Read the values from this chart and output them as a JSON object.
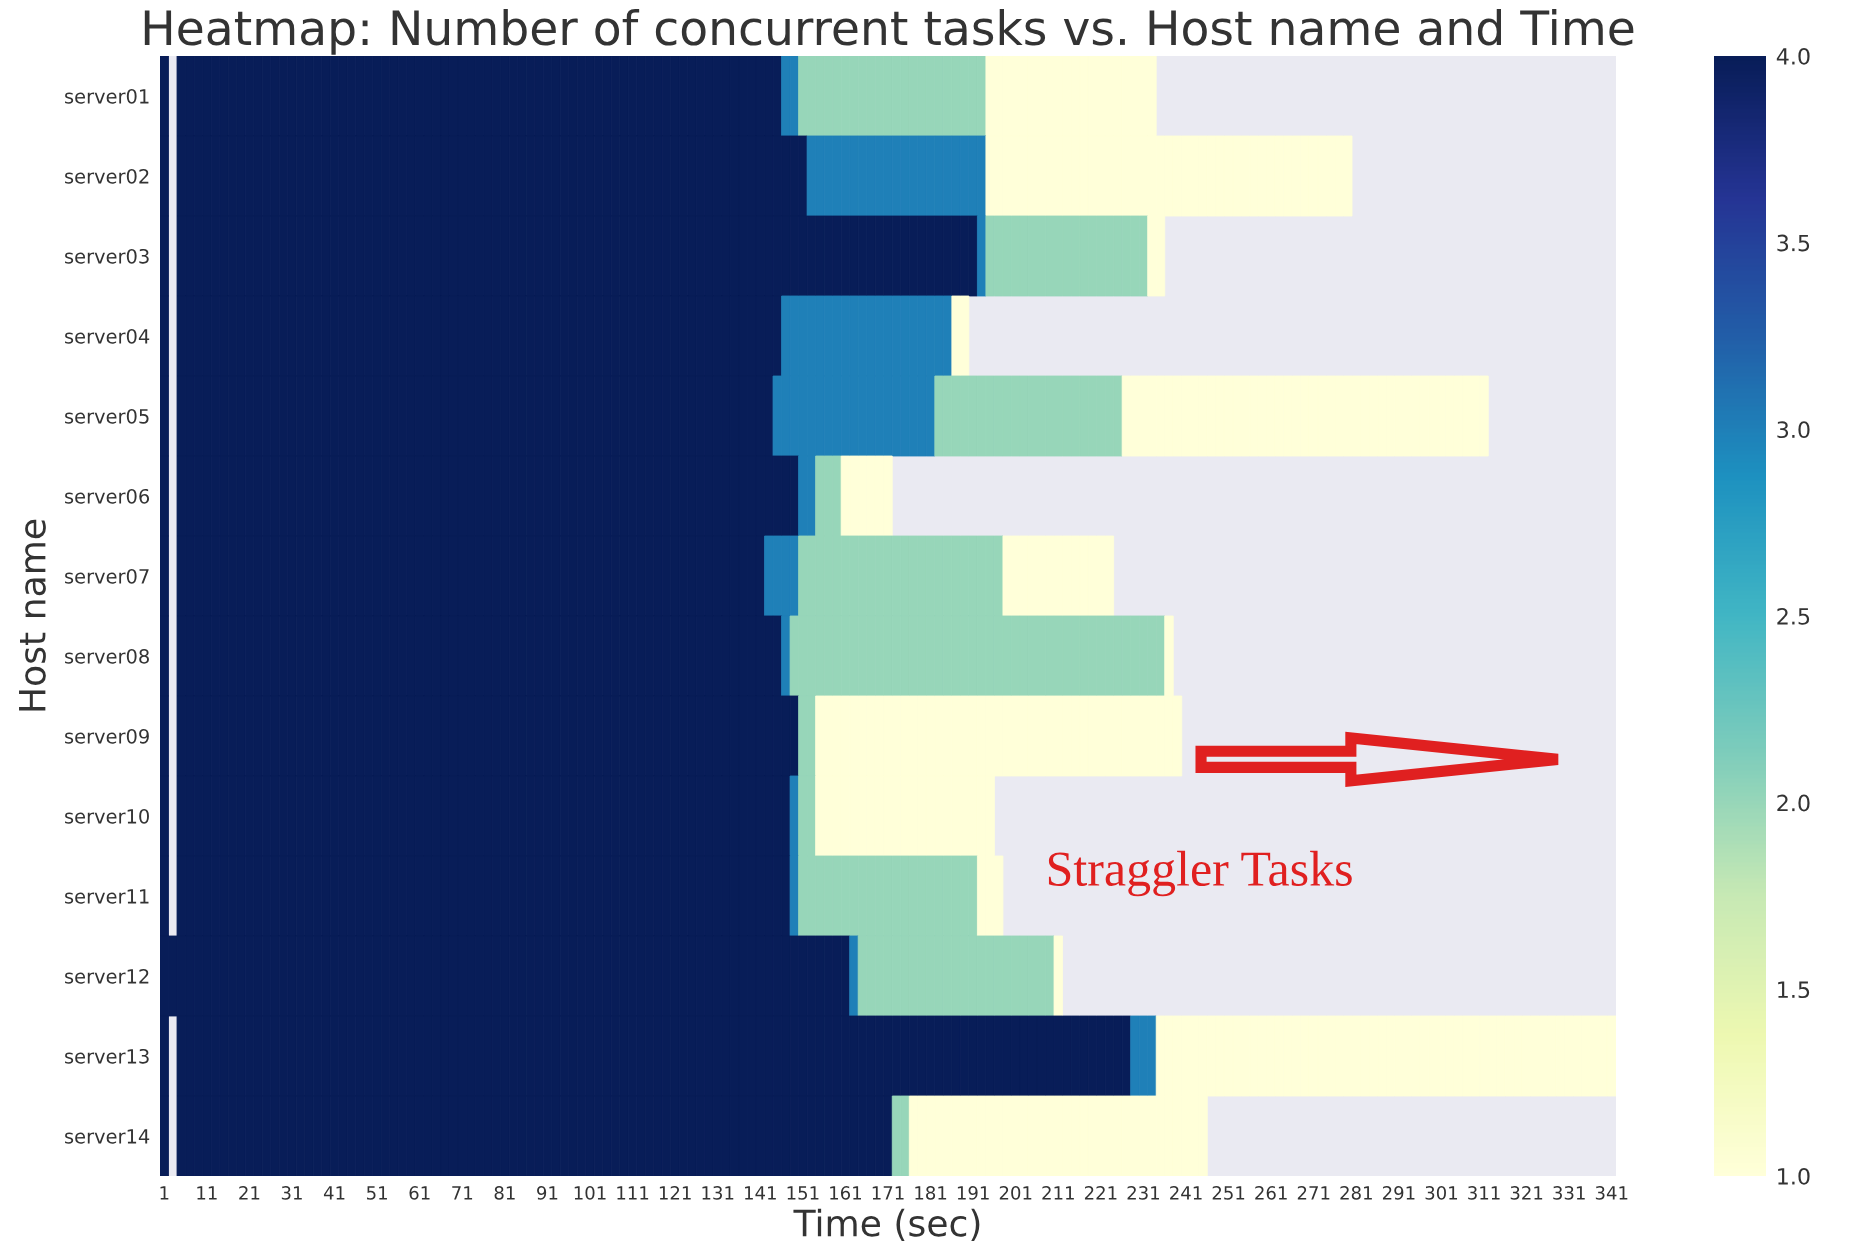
{
  "chart_data": {
    "type": "heatmap",
    "title": "Heatmap: Number of concurrent tasks vs. Host name and Time",
    "xlabel": "Time (sec)",
    "ylabel": "Host name",
    "categories": [
      "1",
      null,
      null,
      null,
      null,
      "11",
      null,
      null,
      null,
      null,
      "21",
      null,
      null,
      null,
      null,
      "31",
      null,
      null,
      null,
      null,
      "41",
      null,
      null,
      null,
      null,
      "51",
      null,
      null,
      null,
      null,
      "61",
      null,
      null,
      null,
      null,
      "71",
      null,
      null,
      null,
      null,
      "81",
      null,
      null,
      null,
      null,
      "91",
      null,
      null,
      null,
      null,
      "101",
      null,
      null,
      null,
      null,
      "111",
      null,
      null,
      null,
      null,
      "121",
      null,
      null,
      null,
      null,
      "131",
      null,
      null,
      null,
      null,
      "141",
      null,
      null,
      null,
      null,
      "151",
      null,
      null,
      null,
      null,
      "161",
      null,
      null,
      null,
      null,
      "171",
      null,
      null,
      null,
      null,
      "181",
      null,
      null,
      null,
      null,
      "191",
      null,
      null,
      null,
      null,
      "201",
      null,
      null,
      null,
      null,
      "211",
      null,
      null,
      null,
      null,
      "221",
      null,
      null,
      null,
      null,
      "231",
      null,
      null,
      null,
      null,
      "241",
      null,
      null,
      null,
      null,
      "251",
      null,
      null,
      null,
      null,
      "261",
      null,
      null,
      null,
      null,
      "271",
      null,
      null,
      null,
      null,
      "281",
      null,
      null,
      null,
      null,
      "291",
      null,
      null,
      null,
      null,
      "301",
      null,
      null,
      null,
      null,
      "311",
      null,
      null,
      null,
      null,
      "321",
      null,
      null,
      null,
      null,
      "331",
      null,
      null,
      null,
      null,
      "341"
    ],
    "y_categories": [
      "server01",
      "server02",
      "server03",
      "server04",
      "server05",
      "server06",
      "server07",
      "server08",
      "server09",
      "server10",
      "server11",
      "server12",
      "server13",
      "server14"
    ],
    "cells": [
      [
        4,
        null,
        4,
        4,
        4,
        4,
        4,
        4,
        4,
        4,
        4,
        4,
        4,
        4,
        4,
        4,
        4,
        4,
        4,
        4,
        4,
        4,
        4,
        4,
        4,
        4,
        4,
        4,
        4,
        4,
        4,
        4,
        4,
        4,
        4,
        4,
        4,
        4,
        4,
        4,
        4,
        4,
        4,
        4,
        4,
        4,
        4,
        4,
        4,
        4,
        4,
        4,
        4,
        4,
        4,
        4,
        4,
        4,
        4,
        4,
        4,
        4,
        4,
        4,
        4,
        4,
        4,
        4,
        4,
        4,
        4,
        4,
        4,
        3,
        3,
        2,
        2,
        2,
        2,
        2,
        2,
        2,
        2,
        2,
        2,
        2,
        2,
        2,
        2,
        2,
        2,
        2,
        2,
        2,
        2,
        2,
        2,
        1,
        1,
        1,
        1,
        1,
        1,
        1,
        1,
        1,
        1,
        1,
        1,
        1,
        1,
        1,
        1,
        1,
        1,
        1,
        1,
        null,
        null,
        null,
        null,
        null,
        null,
        null,
        null,
        null,
        null,
        null,
        null,
        null,
        null,
        null,
        null,
        null,
        null,
        null,
        null,
        null,
        null,
        null,
        null,
        null,
        null,
        null,
        null,
        null,
        null,
        null,
        null,
        null,
        null,
        null,
        null,
        null,
        null,
        null,
        null,
        null,
        null,
        null,
        null,
        null,
        null,
        null,
        null,
        null,
        null,
        null,
        null,
        null,
        null
      ],
      [
        4,
        null,
        4,
        4,
        4,
        4,
        4,
        4,
        4,
        4,
        4,
        4,
        4,
        4,
        4,
        4,
        4,
        4,
        4,
        4,
        4,
        4,
        4,
        4,
        4,
        4,
        4,
        4,
        4,
        4,
        4,
        4,
        4,
        4,
        4,
        4,
        4,
        4,
        4,
        4,
        4,
        4,
        4,
        4,
        4,
        4,
        4,
        4,
        4,
        4,
        4,
        4,
        4,
        4,
        4,
        4,
        4,
        4,
        4,
        4,
        4,
        4,
        4,
        4,
        4,
        4,
        4,
        4,
        4,
        4,
        4,
        4,
        4,
        4,
        4,
        4,
        3,
        3,
        3,
        3,
        3,
        3,
        3,
        3,
        3,
        3,
        3,
        3,
        3,
        3,
        3,
        3,
        3,
        3,
        3,
        3,
        3,
        1,
        1,
        1,
        1,
        1,
        1,
        1,
        1,
        1,
        1,
        1,
        1,
        1,
        1,
        1,
        1,
        1,
        1,
        1,
        1,
        1,
        1,
        1,
        1,
        1,
        1,
        1,
        1,
        1,
        1,
        1,
        1,
        1,
        1,
        1,
        1,
        1,
        1,
        1,
        1,
        1,
        1,
        1,
        null,
        null,
        null,
        null,
        null,
        null,
        null,
        null,
        null,
        null,
        null,
        null,
        null,
        null,
        null,
        null,
        null,
        null,
        null,
        null,
        null,
        null,
        null,
        null,
        null,
        null,
        null,
        null,
        null,
        null,
        null
      ],
      [
        4,
        null,
        4,
        4,
        4,
        4,
        4,
        4,
        4,
        4,
        4,
        4,
        4,
        4,
        4,
        4,
        4,
        4,
        4,
        4,
        4,
        4,
        4,
        4,
        4,
        4,
        4,
        4,
        4,
        4,
        4,
        4,
        4,
        4,
        4,
        4,
        4,
        4,
        4,
        4,
        4,
        4,
        4,
        4,
        4,
        4,
        4,
        4,
        4,
        4,
        4,
        4,
        4,
        4,
        4,
        4,
        4,
        4,
        4,
        4,
        4,
        4,
        4,
        4,
        4,
        4,
        4,
        4,
        4,
        4,
        4,
        4,
        4,
        4,
        4,
        4,
        4,
        4,
        4,
        4,
        4,
        4,
        4,
        4,
        4,
        4,
        4,
        4,
        4,
        4,
        4,
        4,
        4,
        4,
        4,
        4,
        3,
        2,
        2,
        2,
        2,
        2,
        2,
        2,
        2,
        2,
        2,
        2,
        2,
        2,
        2,
        2,
        2,
        2,
        2,
        2,
        1,
        1,
        null,
        null,
        null,
        null,
        null,
        null,
        null,
        null,
        null,
        null,
        null,
        null,
        null,
        null,
        null,
        null,
        null,
        null,
        null,
        null,
        null,
        null,
        null,
        null,
        null,
        null,
        null,
        null,
        null,
        null,
        null,
        null,
        null,
        null,
        null,
        null,
        null,
        null,
        null,
        null,
        null,
        null,
        null,
        null,
        null,
        null,
        null,
        null,
        null,
        null,
        null,
        null,
        null
      ],
      [
        4,
        null,
        4,
        4,
        4,
        4,
        4,
        4,
        4,
        4,
        4,
        4,
        4,
        4,
        4,
        4,
        4,
        4,
        4,
        4,
        4,
        4,
        4,
        4,
        4,
        4,
        4,
        4,
        4,
        4,
        4,
        4,
        4,
        4,
        4,
        4,
        4,
        4,
        4,
        4,
        4,
        4,
        4,
        4,
        4,
        4,
        4,
        4,
        4,
        4,
        4,
        4,
        4,
        4,
        4,
        4,
        4,
        4,
        4,
        4,
        4,
        4,
        4,
        4,
        4,
        4,
        4,
        4,
        4,
        4,
        4,
        4,
        4,
        3,
        3,
        3,
        3,
        3,
        3,
        3,
        3,
        3,
        3,
        3,
        3,
        3,
        3,
        3,
        3,
        3,
        3,
        3,
        3,
        1,
        1,
        null,
        null,
        null,
        null,
        null,
        null,
        null,
        null,
        null,
        null,
        null,
        null,
        null,
        null,
        null,
        null,
        null,
        null,
        null,
        null,
        null,
        null,
        null,
        null,
        null,
        null,
        null,
        null,
        null,
        null,
        null,
        null,
        null,
        null,
        null,
        null,
        null,
        null,
        null,
        null,
        null,
        null,
        null,
        null,
        null,
        null,
        null,
        null,
        null,
        null,
        null,
        null,
        null,
        null,
        null,
        null,
        null,
        null,
        null,
        null,
        null,
        null,
        null,
        null,
        null,
        null,
        null,
        null,
        null,
        null,
        null,
        null,
        null,
        null,
        null,
        null
      ],
      [
        4,
        null,
        4,
        4,
        4,
        4,
        4,
        4,
        4,
        4,
        4,
        4,
        4,
        4,
        4,
        4,
        4,
        4,
        4,
        4,
        4,
        4,
        4,
        4,
        4,
        4,
        4,
        4,
        4,
        4,
        4,
        4,
        4,
        4,
        4,
        4,
        4,
        4,
        4,
        4,
        4,
        4,
        4,
        4,
        4,
        4,
        4,
        4,
        4,
        4,
        4,
        4,
        4,
        4,
        4,
        4,
        4,
        4,
        4,
        4,
        4,
        4,
        4,
        4,
        4,
        4,
        4,
        4,
        4,
        4,
        4,
        4,
        3,
        3,
        3,
        3,
        3,
        3,
        3,
        3,
        3,
        3,
        3,
        3,
        3,
        3,
        3,
        3,
        3,
        3,
        3,
        2,
        2,
        2,
        2,
        2,
        2,
        2,
        2,
        2,
        2,
        2,
        2,
        2,
        2,
        2,
        2,
        2,
        2,
        2,
        2,
        2,
        2,
        1,
        1,
        1,
        1,
        1,
        1,
        1,
        1,
        1,
        1,
        1,
        1,
        1,
        1,
        1,
        1,
        1,
        1,
        1,
        1,
        1,
        1,
        1,
        1,
        1,
        1,
        1,
        1,
        1,
        1,
        1,
        1,
        1,
        1,
        1,
        1,
        1,
        1,
        1,
        1,
        1,
        1,
        1,
        null,
        null,
        null,
        null,
        null,
        null,
        null,
        null,
        null,
        null,
        null,
        null,
        null,
        null,
        null
      ],
      [
        4,
        null,
        4,
        4,
        4,
        4,
        4,
        4,
        4,
        4,
        4,
        4,
        4,
        4,
        4,
        4,
        4,
        4,
        4,
        4,
        4,
        4,
        4,
        4,
        4,
        4,
        4,
        4,
        4,
        4,
        4,
        4,
        4,
        4,
        4,
        4,
        4,
        4,
        4,
        4,
        4,
        4,
        4,
        4,
        4,
        4,
        4,
        4,
        4,
        4,
        4,
        4,
        4,
        4,
        4,
        4,
        4,
        4,
        4,
        4,
        4,
        4,
        4,
        4,
        4,
        4,
        4,
        4,
        4,
        4,
        4,
        4,
        4,
        4,
        4,
        3,
        3,
        2,
        2,
        2,
        1,
        1,
        1,
        1,
        1,
        1,
        null,
        null,
        null,
        null,
        null,
        null,
        null,
        null,
        null,
        null,
        null,
        null,
        null,
        null,
        null,
        null,
        null,
        null,
        null,
        null,
        null,
        null,
        null,
        null,
        null,
        null,
        null,
        null,
        null,
        null,
        null,
        null,
        null,
        null,
        null,
        null,
        null,
        null,
        null,
        null,
        null,
        null,
        null,
        null,
        null,
        null,
        null,
        null,
        null,
        null,
        null,
        null,
        null,
        null,
        null,
        null,
        null,
        null,
        null,
        null,
        null,
        null,
        null,
        null,
        null,
        null,
        null,
        null,
        null,
        null,
        null,
        null,
        null,
        null,
        null,
        null,
        null,
        null,
        null,
        null,
        null,
        null,
        null,
        null,
        null
      ],
      [
        4,
        null,
        4,
        4,
        4,
        4,
        4,
        4,
        4,
        4,
        4,
        4,
        4,
        4,
        4,
        4,
        4,
        4,
        4,
        4,
        4,
        4,
        4,
        4,
        4,
        4,
        4,
        4,
        4,
        4,
        4,
        4,
        4,
        4,
        4,
        4,
        4,
        4,
        4,
        4,
        4,
        4,
        4,
        4,
        4,
        4,
        4,
        4,
        4,
        4,
        4,
        4,
        4,
        4,
        4,
        4,
        4,
        4,
        4,
        4,
        4,
        4,
        4,
        4,
        4,
        4,
        4,
        4,
        4,
        4,
        4,
        3,
        3,
        3,
        3,
        2,
        2,
        2,
        2,
        2,
        2,
        2,
        2,
        2,
        2,
        2,
        2,
        2,
        2,
        2,
        2,
        2,
        2,
        2,
        2,
        2,
        2,
        2,
        2,
        1,
        1,
        1,
        1,
        1,
        1,
        1,
        1,
        1,
        1,
        1,
        1,
        1,
        null,
        null,
        null,
        null,
        null,
        null,
        null,
        null,
        null,
        null,
        null,
        null,
        null,
        null,
        null,
        null,
        null,
        null,
        null,
        null,
        null,
        null,
        null,
        null,
        null,
        null,
        null,
        null,
        null,
        null,
        null,
        null,
        null,
        null,
        null,
        null,
        null,
        null,
        null,
        null,
        null,
        null,
        null,
        null,
        null,
        null,
        null,
        null,
        null,
        null,
        null,
        null,
        null,
        null,
        null,
        null,
        null,
        null,
        null
      ],
      [
        4,
        null,
        4,
        4,
        4,
        4,
        4,
        4,
        4,
        4,
        4,
        4,
        4,
        4,
        4,
        4,
        4,
        4,
        4,
        4,
        4,
        4,
        4,
        4,
        4,
        4,
        4,
        4,
        4,
        4,
        4,
        4,
        4,
        4,
        4,
        4,
        4,
        4,
        4,
        4,
        4,
        4,
        4,
        4,
        4,
        4,
        4,
        4,
        4,
        4,
        4,
        4,
        4,
        4,
        4,
        4,
        4,
        4,
        4,
        4,
        4,
        4,
        4,
        4,
        4,
        4,
        4,
        4,
        4,
        4,
        4,
        4,
        4,
        3,
        2,
        2,
        2,
        2,
        2,
        2,
        2,
        2,
        2,
        2,
        2,
        2,
        2,
        2,
        2,
        2,
        2,
        2,
        2,
        2,
        2,
        2,
        2,
        2,
        2,
        2,
        2,
        2,
        2,
        2,
        2,
        2,
        2,
        2,
        2,
        2,
        2,
        2,
        2,
        2,
        2,
        2,
        2,
        2,
        1,
        null,
        null,
        null,
        null,
        null,
        null,
        null,
        null,
        null,
        null,
        null,
        null,
        null,
        null,
        null,
        null,
        null,
        null,
        null,
        null,
        null,
        null,
        null,
        null,
        null,
        null,
        null,
        null,
        null,
        null,
        null,
        null,
        null,
        null,
        null,
        null,
        null,
        null,
        null,
        null,
        null,
        null,
        null,
        null,
        null,
        null,
        null,
        null,
        null,
        null,
        null,
        null
      ],
      [
        4,
        null,
        4,
        4,
        4,
        4,
        4,
        4,
        4,
        4,
        4,
        4,
        4,
        4,
        4,
        4,
        4,
        4,
        4,
        4,
        4,
        4,
        4,
        4,
        4,
        4,
        4,
        4,
        4,
        4,
        4,
        4,
        4,
        4,
        4,
        4,
        4,
        4,
        4,
        4,
        4,
        4,
        4,
        4,
        4,
        4,
        4,
        4,
        4,
        4,
        4,
        4,
        4,
        4,
        4,
        4,
        4,
        4,
        4,
        4,
        4,
        4,
        4,
        4,
        4,
        4,
        4,
        4,
        4,
        4,
        4,
        4,
        4,
        4,
        4,
        2,
        2,
        1,
        1,
        1,
        1,
        1,
        1,
        1,
        1,
        1,
        1,
        1,
        1,
        1,
        1,
        1,
        1,
        1,
        1,
        1,
        1,
        1,
        1,
        1,
        1,
        1,
        1,
        1,
        1,
        1,
        1,
        1,
        1,
        1,
        1,
        1,
        1,
        1,
        1,
        1,
        1,
        1,
        1,
        1,
        null,
        null,
        null,
        null,
        null,
        null,
        null,
        null,
        null,
        null,
        null,
        null,
        null,
        null,
        null,
        null,
        null,
        null,
        null,
        null,
        null,
        null,
        null,
        null,
        null,
        null,
        null,
        null,
        null,
        null,
        null,
        null,
        null,
        null,
        null,
        null,
        null,
        null,
        null,
        null,
        null,
        null,
        null,
        null,
        null,
        null,
        null,
        null,
        null,
        null,
        null
      ],
      [
        4,
        null,
        4,
        4,
        4,
        4,
        4,
        4,
        4,
        4,
        4,
        4,
        4,
        4,
        4,
        4,
        4,
        4,
        4,
        4,
        4,
        4,
        4,
        4,
        4,
        4,
        4,
        4,
        4,
        4,
        4,
        4,
        4,
        4,
        4,
        4,
        4,
        4,
        4,
        4,
        4,
        4,
        4,
        4,
        4,
        4,
        4,
        4,
        4,
        4,
        4,
        4,
        4,
        4,
        4,
        4,
        4,
        4,
        4,
        4,
        4,
        4,
        4,
        4,
        4,
        4,
        4,
        4,
        4,
        4,
        4,
        4,
        4,
        4,
        3,
        2,
        2,
        1,
        1,
        1,
        1,
        1,
        1,
        1,
        1,
        1,
        1,
        1,
        1,
        1,
        1,
        1,
        1,
        1,
        1,
        1,
        1,
        1,
        null,
        null,
        null,
        null,
        null,
        null,
        null,
        null,
        null,
        null,
        null,
        null,
        null,
        null,
        null,
        null,
        null,
        null,
        null,
        null,
        null,
        null,
        null,
        null,
        null,
        null,
        null,
        null,
        null,
        null,
        null,
        null,
        null,
        null,
        null,
        null,
        null,
        null,
        null,
        null,
        null,
        null,
        null,
        null,
        null,
        null,
        null,
        null,
        null,
        null,
        null,
        null,
        null,
        null,
        null,
        null,
        null,
        null,
        null,
        null,
        null,
        null,
        null,
        null,
        null,
        null,
        null,
        null,
        null,
        null,
        null,
        null,
        null
      ],
      [
        4,
        null,
        4,
        4,
        4,
        4,
        4,
        4,
        4,
        4,
        4,
        4,
        4,
        4,
        4,
        4,
        4,
        4,
        4,
        4,
        4,
        4,
        4,
        4,
        4,
        4,
        4,
        4,
        4,
        4,
        4,
        4,
        4,
        4,
        4,
        4,
        4,
        4,
        4,
        4,
        4,
        4,
        4,
        4,
        4,
        4,
        4,
        4,
        4,
        4,
        4,
        4,
        4,
        4,
        4,
        4,
        4,
        4,
        4,
        4,
        4,
        4,
        4,
        4,
        4,
        4,
        4,
        4,
        4,
        4,
        4,
        4,
        4,
        4,
        3,
        2,
        2,
        2,
        2,
        2,
        2,
        2,
        2,
        2,
        2,
        2,
        2,
        2,
        2,
        2,
        2,
        2,
        2,
        2,
        2,
        2,
        1,
        1,
        1,
        null,
        null,
        null,
        null,
        null,
        null,
        null,
        null,
        null,
        null,
        null,
        null,
        null,
        null,
        null,
        null,
        null,
        null,
        null,
        null,
        null,
        null,
        null,
        null,
        null,
        null,
        null,
        null,
        null,
        null,
        null,
        null,
        null,
        null,
        null,
        null,
        null,
        null,
        null,
        null,
        null,
        null,
        null,
        null,
        null,
        null,
        null,
        null,
        null,
        null,
        null,
        null,
        null,
        null,
        null,
        null,
        null,
        null,
        null,
        null,
        null,
        null,
        null,
        null,
        null,
        null,
        null,
        null,
        null,
        null,
        null,
        null
      ],
      [
        4,
        4,
        4,
        4,
        4,
        4,
        4,
        4,
        4,
        4,
        4,
        4,
        4,
        4,
        4,
        4,
        4,
        4,
        4,
        4,
        4,
        4,
        4,
        4,
        4,
        4,
        4,
        4,
        4,
        4,
        4,
        4,
        4,
        4,
        4,
        4,
        4,
        4,
        4,
        4,
        4,
        4,
        4,
        4,
        4,
        4,
        4,
        4,
        4,
        4,
        4,
        4,
        4,
        4,
        4,
        4,
        4,
        4,
        4,
        4,
        4,
        4,
        4,
        4,
        4,
        4,
        4,
        4,
        4,
        4,
        4,
        4,
        4,
        4,
        4,
        4,
        4,
        4,
        4,
        4,
        4,
        3,
        2,
        2,
        2,
        2,
        2,
        2,
        2,
        2,
        2,
        2,
        2,
        2,
        2,
        2,
        2,
        2,
        2,
        2,
        2,
        2,
        2,
        2,
        2,
        1,
        null,
        null,
        null,
        null,
        null,
        null,
        null,
        null,
        null,
        null,
        null,
        null,
        null,
        null,
        null,
        null,
        null,
        null,
        null,
        null,
        null,
        null,
        null,
        null,
        null,
        null,
        null,
        null,
        null,
        null,
        null,
        null,
        null,
        null,
        null,
        null,
        null,
        null,
        null,
        null,
        null,
        null,
        null,
        null,
        null,
        null,
        null,
        null,
        null,
        null,
        null,
        null,
        null,
        null,
        null,
        null,
        null,
        null,
        null,
        null,
        null,
        null,
        null,
        null,
        null
      ],
      [
        4,
        null,
        4,
        4,
        4,
        4,
        4,
        4,
        4,
        4,
        4,
        4,
        4,
        4,
        4,
        4,
        4,
        4,
        4,
        4,
        4,
        4,
        4,
        4,
        4,
        4,
        4,
        4,
        4,
        4,
        4,
        4,
        4,
        4,
        4,
        4,
        4,
        4,
        4,
        4,
        4,
        4,
        4,
        4,
        4,
        4,
        4,
        4,
        4,
        4,
        4,
        4,
        4,
        4,
        4,
        4,
        4,
        4,
        4,
        4,
        4,
        4,
        4,
        4,
        4,
        4,
        4,
        4,
        4,
        4,
        4,
        4,
        4,
        4,
        4,
        4,
        4,
        4,
        4,
        4,
        4,
        4,
        4,
        4,
        4,
        4,
        4,
        4,
        4,
        4,
        4,
        4,
        4,
        4,
        4,
        4,
        4,
        4,
        4,
        4,
        4,
        4,
        4,
        4,
        4,
        4,
        4,
        4,
        4,
        4,
        4,
        4,
        4,
        4,
        3,
        3,
        3,
        1,
        1,
        1,
        1,
        1,
        1,
        1,
        1,
        1,
        1,
        1,
        1,
        1,
        1,
        1,
        1,
        1,
        1,
        1,
        1,
        1,
        1,
        1,
        1,
        1,
        1,
        1,
        1,
        1,
        1,
        1,
        1,
        1,
        1,
        1,
        1,
        1,
        1,
        1,
        1,
        1,
        1,
        1,
        1,
        1,
        1,
        1,
        1,
        1,
        1,
        1,
        1,
        1,
        1
      ],
      [
        4,
        null,
        4,
        4,
        4,
        4,
        4,
        4,
        4,
        4,
        4,
        4,
        4,
        4,
        4,
        4,
        4,
        4,
        4,
        4,
        4,
        4,
        4,
        4,
        4,
        4,
        4,
        4,
        4,
        4,
        4,
        4,
        4,
        4,
        4,
        4,
        4,
        4,
        4,
        4,
        4,
        4,
        4,
        4,
        4,
        4,
        4,
        4,
        4,
        4,
        4,
        4,
        4,
        4,
        4,
        4,
        4,
        4,
        4,
        4,
        4,
        4,
        4,
        4,
        4,
        4,
        4,
        4,
        4,
        4,
        4,
        4,
        4,
        4,
        4,
        4,
        4,
        4,
        4,
        4,
        4,
        4,
        4,
        4,
        4,
        4,
        2,
        2,
        1,
        1,
        1,
        1,
        1,
        1,
        1,
        1,
        1,
        1,
        1,
        1,
        1,
        1,
        1,
        1,
        1,
        1,
        1,
        1,
        1,
        1,
        1,
        1,
        1,
        1,
        1,
        1,
        1,
        1,
        1,
        1,
        1,
        1,
        1,
        null,
        null,
        null,
        null,
        null,
        null,
        null,
        null,
        null,
        null,
        null,
        null,
        null,
        null,
        null,
        null,
        null,
        null,
        null,
        null,
        null,
        null,
        null,
        null,
        null,
        null,
        null,
        null,
        null,
        null,
        null,
        null,
        null,
        null,
        null,
        null,
        null,
        null,
        null,
        null,
        null,
        null,
        null,
        null,
        null,
        null,
        null,
        null
      ]
    ],
    "clim": [
      1,
      4
    ],
    "cticks": [
      {
        "value": 1,
        "label": "1.0"
      },
      {
        "value": 1.5,
        "label": "1.5"
      },
      {
        "value": 2,
        "label": "2.0"
      },
      {
        "value": 2.5,
        "label": "2.5"
      },
      {
        "value": 3,
        "label": "3.0"
      },
      {
        "value": 3.5,
        "label": "3.5"
      },
      {
        "value": 4,
        "label": "4.0"
      }
    ],
    "annotations": [
      "Straggler Tasks"
    ]
  }
}
